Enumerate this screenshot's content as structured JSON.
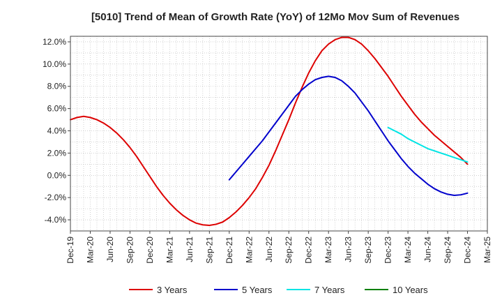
{
  "chart_data": {
    "type": "line",
    "title": "[5010]  Trend of Mean of Growth Rate (YoY) of 12Mo Mov Sum of Revenues",
    "xlabel": "",
    "ylabel": "",
    "ylim": [
      -5.0,
      12.5
    ],
    "y_ticks": [
      12.0,
      10.0,
      8.0,
      6.0,
      4.0,
      2.0,
      0.0,
      -2.0,
      -4.0
    ],
    "y_tick_labels": [
      "12.0%",
      "10.0%",
      "8.0%",
      "6.0%",
      "4.0%",
      "2.0%",
      "0.0%",
      "-2.0%",
      "-4.0%"
    ],
    "x_range": [
      "2019-12",
      "2025-03"
    ],
    "x_ticks": [
      "2019-12",
      "2020-03",
      "2020-06",
      "2020-09",
      "2020-12",
      "2021-03",
      "2021-06",
      "2021-09",
      "2021-12",
      "2022-03",
      "2022-06",
      "2022-09",
      "2022-12",
      "2023-03",
      "2023-06",
      "2023-09",
      "2023-12",
      "2024-03",
      "2024-06",
      "2024-09",
      "2024-12",
      "2025-03"
    ],
    "x_tick_labels": [
      "Dec-19",
      "Mar-20",
      "Jun-20",
      "Sep-20",
      "Dec-20",
      "Mar-21",
      "Jun-21",
      "Sep-21",
      "Dec-21",
      "Mar-22",
      "Jun-22",
      "Sep-22",
      "Dec-22",
      "Mar-23",
      "Jun-23",
      "Sep-23",
      "Dec-23",
      "Mar-24",
      "Jun-24",
      "Sep-24",
      "Dec-24",
      "Mar-25"
    ],
    "grid": true,
    "legend_position": "bottom",
    "series": [
      {
        "name": "3 Years",
        "color": "#dd0000",
        "points": [
          [
            "2019-12",
            5.0
          ],
          [
            "2020-01",
            5.2
          ],
          [
            "2020-02",
            5.3
          ],
          [
            "2020-03",
            5.2
          ],
          [
            "2020-04",
            5.0
          ],
          [
            "2020-05",
            4.7
          ],
          [
            "2020-06",
            4.3
          ],
          [
            "2020-07",
            3.8
          ],
          [
            "2020-08",
            3.2
          ],
          [
            "2020-09",
            2.5
          ],
          [
            "2020-10",
            1.7
          ],
          [
            "2020-11",
            0.8
          ],
          [
            "2020-12",
            -0.1
          ],
          [
            "2021-01",
            -1.0
          ],
          [
            "2021-02",
            -1.8
          ],
          [
            "2021-03",
            -2.5
          ],
          [
            "2021-04",
            -3.1
          ],
          [
            "2021-05",
            -3.6
          ],
          [
            "2021-06",
            -4.0
          ],
          [
            "2021-07",
            -4.3
          ],
          [
            "2021-08",
            -4.45
          ],
          [
            "2021-09",
            -4.5
          ],
          [
            "2021-10",
            -4.4
          ],
          [
            "2021-11",
            -4.2
          ],
          [
            "2021-12",
            -3.8
          ],
          [
            "2022-01",
            -3.3
          ],
          [
            "2022-02",
            -2.7
          ],
          [
            "2022-03",
            -2.0
          ],
          [
            "2022-04",
            -1.2
          ],
          [
            "2022-05",
            -0.2
          ],
          [
            "2022-06",
            0.9
          ],
          [
            "2022-07",
            2.2
          ],
          [
            "2022-08",
            3.6
          ],
          [
            "2022-09",
            5.0
          ],
          [
            "2022-10",
            6.5
          ],
          [
            "2022-11",
            7.9
          ],
          [
            "2022-12",
            9.2
          ],
          [
            "2023-01",
            10.3
          ],
          [
            "2023-02",
            11.2
          ],
          [
            "2023-03",
            11.8
          ],
          [
            "2023-04",
            12.2
          ],
          [
            "2023-05",
            12.4
          ],
          [
            "2023-06",
            12.4
          ],
          [
            "2023-07",
            12.2
          ],
          [
            "2023-08",
            11.8
          ],
          [
            "2023-09",
            11.2
          ],
          [
            "2023-10",
            10.5
          ],
          [
            "2023-11",
            9.7
          ],
          [
            "2023-12",
            8.9
          ],
          [
            "2024-01",
            8.0
          ],
          [
            "2024-02",
            7.1
          ],
          [
            "2024-03",
            6.3
          ],
          [
            "2024-04",
            5.5
          ],
          [
            "2024-05",
            4.8
          ],
          [
            "2024-06",
            4.2
          ],
          [
            "2024-07",
            3.6
          ],
          [
            "2024-08",
            3.1
          ],
          [
            "2024-09",
            2.6
          ],
          [
            "2024-10",
            2.1
          ],
          [
            "2024-11",
            1.6
          ],
          [
            "2024-12",
            1.0
          ]
        ]
      },
      {
        "name": "5 Years",
        "color": "#0000cc",
        "points": [
          [
            "2021-12",
            -0.4
          ],
          [
            "2022-01",
            0.3
          ],
          [
            "2022-02",
            1.0
          ],
          [
            "2022-03",
            1.7
          ],
          [
            "2022-04",
            2.4
          ],
          [
            "2022-05",
            3.1
          ],
          [
            "2022-06",
            3.9
          ],
          [
            "2022-07",
            4.7
          ],
          [
            "2022-08",
            5.5
          ],
          [
            "2022-09",
            6.3
          ],
          [
            "2022-10",
            7.1
          ],
          [
            "2022-11",
            7.7
          ],
          [
            "2022-12",
            8.2
          ],
          [
            "2023-01",
            8.6
          ],
          [
            "2023-02",
            8.8
          ],
          [
            "2023-03",
            8.9
          ],
          [
            "2023-04",
            8.8
          ],
          [
            "2023-05",
            8.5
          ],
          [
            "2023-06",
            8.0
          ],
          [
            "2023-07",
            7.4
          ],
          [
            "2023-08",
            6.6
          ],
          [
            "2023-09",
            5.8
          ],
          [
            "2023-10",
            4.9
          ],
          [
            "2023-11",
            4.0
          ],
          [
            "2023-12",
            3.1
          ],
          [
            "2024-01",
            2.3
          ],
          [
            "2024-02",
            1.5
          ],
          [
            "2024-03",
            0.8
          ],
          [
            "2024-04",
            0.2
          ],
          [
            "2024-05",
            -0.3
          ],
          [
            "2024-06",
            -0.8
          ],
          [
            "2024-07",
            -1.2
          ],
          [
            "2024-08",
            -1.5
          ],
          [
            "2024-09",
            -1.7
          ],
          [
            "2024-10",
            -1.8
          ],
          [
            "2024-11",
            -1.75
          ],
          [
            "2024-12",
            -1.6
          ]
        ]
      },
      {
        "name": "7 Years",
        "color": "#00e5e5",
        "points": [
          [
            "2023-12",
            4.3
          ],
          [
            "2024-01",
            4.0
          ],
          [
            "2024-02",
            3.7
          ],
          [
            "2024-03",
            3.3
          ],
          [
            "2024-04",
            3.0
          ],
          [
            "2024-05",
            2.7
          ],
          [
            "2024-06",
            2.4
          ],
          [
            "2024-07",
            2.2
          ],
          [
            "2024-08",
            2.0
          ],
          [
            "2024-09",
            1.8
          ],
          [
            "2024-10",
            1.6
          ],
          [
            "2024-11",
            1.4
          ],
          [
            "2024-12",
            1.2
          ]
        ]
      },
      {
        "name": "10 Years",
        "color": "#008000",
        "points": []
      }
    ]
  }
}
